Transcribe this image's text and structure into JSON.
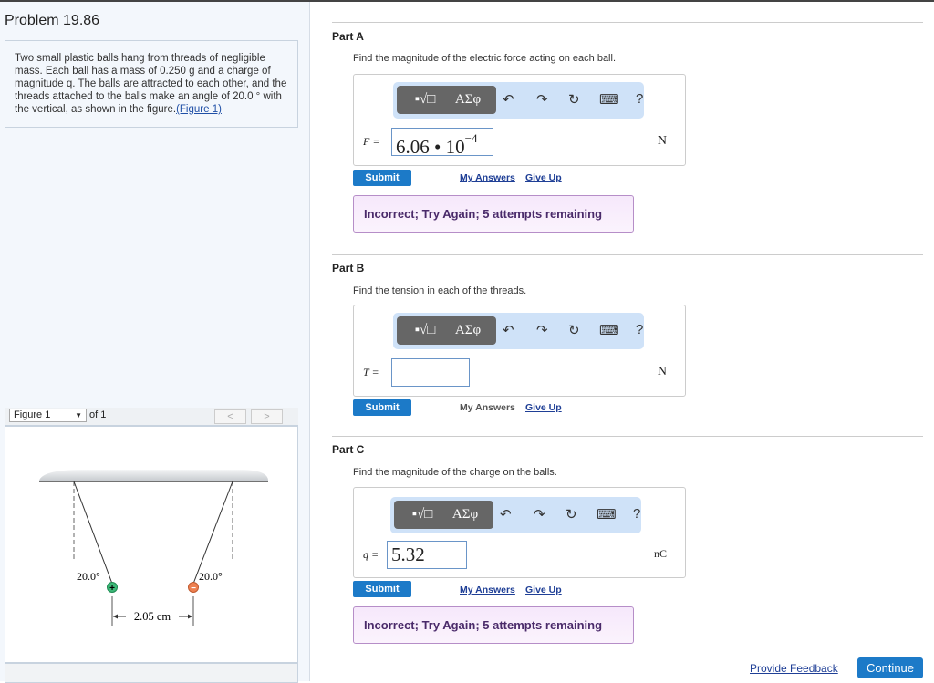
{
  "problem": {
    "title": "Problem 19.86",
    "statement": "Two small plastic balls hang from threads of negligible mass. Each ball has a mass of 0.250 g and a charge of magnitude q. The balls are attracted to each other, and the threads attached to the balls make an angle of 20.0 ° with the vertical, as shown in the figure.",
    "figure_link": "(Figure 1)"
  },
  "figure": {
    "selector": "Figure 1",
    "of": "of 1",
    "prev": "<",
    "next": ">",
    "angle_left": "20.0°",
    "angle_right": "20.0°",
    "distance": "2.05 cm",
    "plus": "+",
    "minus": "−"
  },
  "toolbar": {
    "templates": "▪√□",
    "greek": "ΑΣφ",
    "undo": "↶",
    "redo": "↷",
    "reset": "↻",
    "keyboard": "⌨",
    "help": "?"
  },
  "parts": [
    {
      "header": "Part A",
      "question": "Find the magnitude of the electric force acting on each ball.",
      "var": "F =",
      "value": "6.06 • 10",
      "exp": "−4",
      "unit": "N",
      "submit": "Submit",
      "my_answers": "My Answers",
      "give_up": "Give Up",
      "feedback": "Incorrect; Try Again; 5 attempts remaining"
    },
    {
      "header": "Part B",
      "question": "Find the tension in each of the threads.",
      "var": "T =",
      "value": "",
      "unit": "N",
      "submit": "Submit",
      "my_answers": "My Answers",
      "give_up": "Give Up"
    },
    {
      "header": "Part C",
      "question": "Find the magnitude of the charge on the balls.",
      "var": "q =",
      "value": "5.32",
      "unit": "nC",
      "submit": "Submit",
      "my_answers": "My Answers",
      "give_up": "Give Up",
      "feedback": "Incorrect; Try Again; 5 attempts remaining"
    }
  ],
  "footer": {
    "provide_feedback": "Provide Feedback",
    "continue": "Continue"
  }
}
